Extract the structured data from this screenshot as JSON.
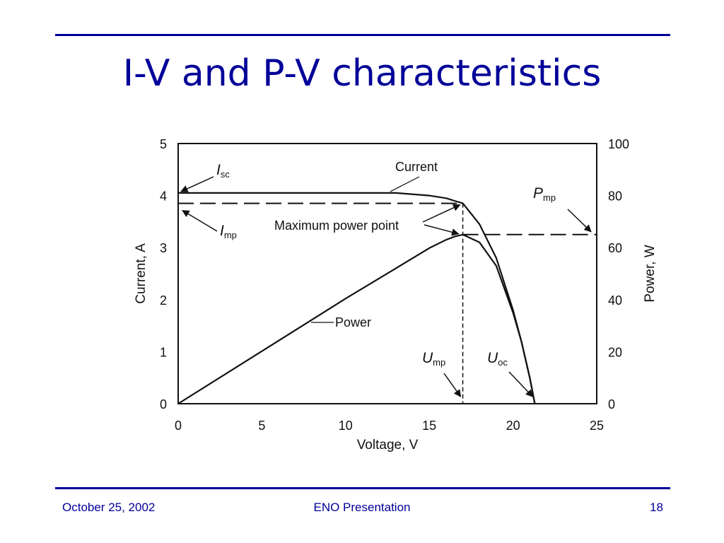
{
  "slide": {
    "title": "I-V and P-V characteristics",
    "footer": {
      "date": "October 25, 2002",
      "presentation": "ENO Presentation",
      "page": "18"
    }
  },
  "colors": {
    "accent": "#000099",
    "ink": "#111111"
  },
  "chart_data": {
    "type": "line",
    "xlabel": "Voltage, V",
    "ylabel": "Current, A",
    "y2label": "Power, W",
    "xlim": [
      0,
      25
    ],
    "ylim": [
      0,
      5
    ],
    "y2lim": [
      0,
      100
    ],
    "xticks": [
      0,
      5,
      10,
      15,
      20,
      25
    ],
    "yticks": [
      0,
      1,
      2,
      3,
      4,
      5
    ],
    "y2ticks": [
      0,
      20,
      40,
      60,
      80,
      100
    ],
    "grid": false,
    "series": [
      {
        "name": "Current",
        "axis": "left",
        "x": [
          0,
          5,
          10,
          13,
          15,
          16,
          16.5,
          17,
          18,
          19,
          20,
          20.5,
          21,
          21.3
        ],
        "y": [
          4.05,
          4.05,
          4.05,
          4.05,
          4.0,
          3.95,
          3.9,
          3.85,
          3.45,
          2.8,
          1.8,
          1.2,
          0.5,
          0
        ]
      },
      {
        "name": "Power",
        "axis": "right",
        "x": [
          0,
          5,
          10,
          13,
          15,
          16,
          16.5,
          17,
          18,
          19,
          20,
          20.5,
          21,
          21.3
        ],
        "y": [
          0,
          20.2,
          40.4,
          52.0,
          59.8,
          63.0,
          64.2,
          65.0,
          62.0,
          53.0,
          35.0,
          24.0,
          10.0,
          0
        ]
      }
    ],
    "annotations": {
      "isc": {
        "base": "I",
        "sub": "sc"
      },
      "imp": {
        "base": "I",
        "sub": "mp"
      },
      "pmp": {
        "base": "P",
        "sub": "mp"
      },
      "ump": {
        "base": "U",
        "sub": "mp"
      },
      "uoc": {
        "base": "U",
        "sub": "oc"
      },
      "current_label": "Current",
      "power_label": "Power",
      "mpp_label": "Maximum power point"
    },
    "mpp": {
      "voltage": 17,
      "current": 3.85,
      "power": 65
    }
  }
}
